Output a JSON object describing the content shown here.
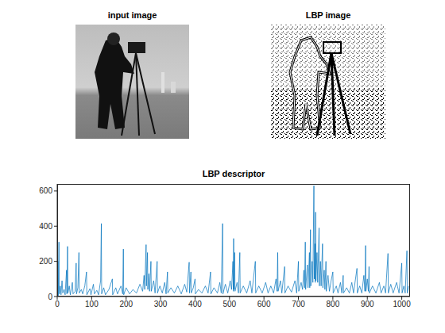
{
  "panels": [
    {
      "title": "input image"
    },
    {
      "title": "LBP image"
    }
  ],
  "chart_data": {
    "type": "line",
    "title": "LBP descriptor",
    "color": "#0072bd",
    "grid": false,
    "xlim": [
      0,
      1024
    ],
    "xticks": [
      0,
      100,
      200,
      300,
      400,
      500,
      600,
      700,
      800,
      900,
      1000
    ],
    "ylim": [
      0,
      640
    ],
    "yticks": [
      0,
      200,
      400,
      600
    ],
    "x": [
      0,
      1,
      2,
      3,
      5,
      6,
      9,
      11,
      14,
      16,
      20,
      23,
      27,
      28,
      30,
      31,
      35,
      38,
      44,
      46,
      52,
      55,
      56,
      60,
      63,
      64,
      70,
      74,
      80,
      85,
      86,
      95,
      98,
      105,
      108,
      115,
      120,
      126,
      128,
      129,
      135,
      140,
      150,
      160,
      161,
      170,
      175,
      185,
      190,
      192,
      193,
      200,
      210,
      220,
      230,
      240,
      248,
      252,
      254,
      258,
      259,
      262,
      263,
      266,
      268,
      272,
      273,
      280,
      284,
      290,
      291,
      298,
      305,
      312,
      316,
      320,
      321,
      330,
      340,
      350,
      360,
      370,
      376,
      383,
      384,
      388,
      389,
      395,
      400,
      401,
      410,
      420,
      430,
      438,
      445,
      446,
      455,
      465,
      472,
      476,
      480,
      481,
      488,
      495,
      502,
      506,
      510,
      511,
      512,
      513,
      515,
      516,
      522,
      526,
      530,
      531,
      540,
      550,
      560,
      565,
      575,
      576,
      585,
      595,
      605,
      612,
      620,
      628,
      635,
      638,
      640,
      641,
      648,
      652,
      660,
      661,
      670,
      680,
      690,
      695,
      700,
      701,
      708,
      712,
      716,
      718,
      720,
      721,
      726,
      728,
      732,
      733,
      735,
      736,
      740,
      742,
      745,
      746,
      748,
      749,
      750,
      751,
      754,
      756,
      760,
      761,
      764,
      766,
      770,
      771,
      775,
      777,
      780,
      781,
      786,
      790,
      795,
      800,
      801,
      810,
      815,
      822,
      826,
      830,
      831,
      840,
      848,
      855,
      860,
      870,
      871,
      878,
      884,
      890,
      893,
      895,
      896,
      900,
      903,
      905,
      906,
      915,
      925,
      935,
      940,
      948,
      953,
      960,
      961,
      968,
      975,
      985,
      992,
      1000,
      1001,
      1006,
      1010,
      1015,
      1016,
      1020
    ],
    "values": [
      120,
      10,
      200,
      5,
      310,
      15,
      60,
      10,
      90,
      20,
      40,
      10,
      150,
      15,
      285,
      20,
      60,
      10,
      80,
      15,
      30,
      190,
      15,
      50,
      250,
      20,
      40,
      15,
      60,
      140,
      10,
      45,
      10,
      70,
      15,
      35,
      10,
      90,
      415,
      15,
      50,
      10,
      40,
      100,
      10,
      50,
      15,
      60,
      15,
      270,
      10,
      50,
      15,
      40,
      20,
      70,
      30,
      120,
      40,
      295,
      60,
      250,
      40,
      130,
      30,
      200,
      30,
      90,
      20,
      200,
      20,
      60,
      20,
      80,
      15,
      140,
      20,
      50,
      20,
      60,
      15,
      70,
      25,
      195,
      20,
      140,
      20,
      50,
      100,
      15,
      40,
      20,
      60,
      20,
      140,
      15,
      50,
      20,
      80,
      20,
      415,
      15,
      70,
      20,
      90,
      40,
      200,
      30,
      330,
      40,
      250,
      30,
      80,
      20,
      250,
      20,
      60,
      20,
      90,
      20,
      200,
      20,
      60,
      20,
      80,
      20,
      60,
      20,
      100,
      30,
      250,
      30,
      90,
      20,
      170,
      20,
      60,
      25,
      90,
      20,
      200,
      30,
      80,
      40,
      150,
      50,
      310,
      40,
      180,
      50,
      250,
      50,
      380,
      60,
      200,
      80,
      630,
      100,
      300,
      80,
      480,
      90,
      250,
      80,
      390,
      60,
      200,
      60,
      300,
      50,
      150,
      40,
      200,
      30,
      120,
      30,
      90,
      140,
      20,
      60,
      20,
      80,
      20,
      120,
      20,
      50,
      20,
      80,
      20,
      160,
      20,
      60,
      20,
      120,
      30,
      290,
      30,
      100,
      30,
      170,
      20,
      60,
      20,
      80,
      20,
      60,
      20,
      245,
      20,
      70,
      20,
      80,
      20,
      190,
      20,
      60,
      20,
      260,
      20,
      60
    ]
  }
}
